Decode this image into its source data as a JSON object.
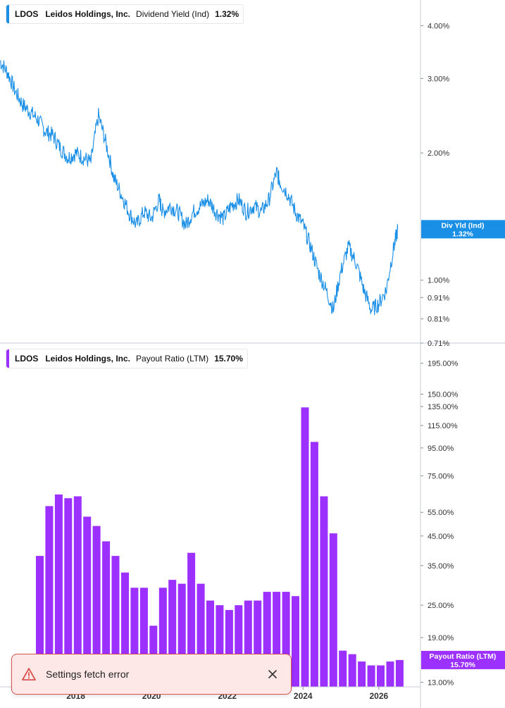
{
  "toast": {
    "message": "Settings fetch error",
    "icon": "warning-icon",
    "close_icon": "close-icon",
    "color": "#d9534f"
  },
  "chart_data": [
    {
      "type": "line",
      "legend": {
        "ticker": "LDOS",
        "company": "Leidos Holdings, Inc.",
        "metric": "Dividend Yield (Ind)",
        "value": "1.32%"
      },
      "scale": "log",
      "color": "#1a8fe6",
      "y_ticks": [
        "4.00%",
        "3.00%",
        "2.00%",
        "1.00%",
        "0.91%",
        "0.81%",
        "0.71%"
      ],
      "y_tick_values": [
        4.0,
        3.0,
        2.0,
        1.0,
        0.91,
        0.81,
        0.71
      ],
      "ylim": [
        0.71,
        4.6
      ],
      "last_value_label": {
        "name": "Div Yld (Ind)",
        "value": "1.32%"
      },
      "x": [
        2016.0,
        2016.2,
        2016.4,
        2016.6,
        2016.8,
        2017.0,
        2017.2,
        2017.4,
        2017.6,
        2017.8,
        2018.0,
        2018.2,
        2018.4,
        2018.6,
        2018.8,
        2019.0,
        2019.2,
        2019.4,
        2019.6,
        2019.8,
        2020.0,
        2020.2,
        2020.3,
        2020.5,
        2020.7,
        2020.9,
        2021.1,
        2021.3,
        2021.5,
        2021.7,
        2021.9,
        2022.1,
        2022.3,
        2022.5,
        2022.7,
        2022.9,
        2023.1,
        2023.3,
        2023.4,
        2023.6,
        2023.8,
        2024.0,
        2024.2,
        2024.4,
        2024.6,
        2024.8,
        2025.0,
        2025.2,
        2025.4,
        2025.6,
        2025.8,
        2026.0,
        2026.2,
        2026.4,
        2026.5
      ],
      "values": [
        3.3,
        3.1,
        2.8,
        2.6,
        2.5,
        2.4,
        2.25,
        2.2,
        2.05,
        1.95,
        2.0,
        1.95,
        1.9,
        2.45,
        2.1,
        1.75,
        1.6,
        1.45,
        1.35,
        1.45,
        1.4,
        1.55,
        1.45,
        1.5,
        1.45,
        1.35,
        1.45,
        1.5,
        1.55,
        1.45,
        1.4,
        1.5,
        1.55,
        1.45,
        1.5,
        1.45,
        1.55,
        1.8,
        1.7,
        1.6,
        1.45,
        1.35,
        1.2,
        1.05,
        0.95,
        0.85,
        1.05,
        1.2,
        1.1,
        0.95,
        0.85,
        0.88,
        0.95,
        1.2,
        1.32
      ],
      "detail": {
        "weekly_noise": true
      }
    },
    {
      "type": "bar",
      "legend": {
        "ticker": "LDOS",
        "company": "Leidos Holdings, Inc.",
        "metric": "Payout Ratio (LTM)",
        "value": "15.70%"
      },
      "scale": "log",
      "color": "#9b30ff",
      "y_ticks": [
        "195.00%",
        "150.00%",
        "135.00%",
        "115.00%",
        "95.00%",
        "75.00%",
        "55.00%",
        "45.00%",
        "35.00%",
        "25.00%",
        "19.00%",
        "13.00%"
      ],
      "y_tick_values": [
        195,
        150,
        135,
        115,
        95,
        75,
        55,
        45,
        35,
        25,
        19,
        13
      ],
      "ylim": [
        12.5,
        230
      ],
      "last_value_label": {
        "name": "Payout Ratio (LTM)",
        "value": "15.70%"
      },
      "x_ticks": [
        "2018",
        "2020",
        "2022",
        "2024",
        "2026"
      ],
      "x_tick_values": [
        2018.0,
        2020.0,
        2022.0,
        2024.0,
        2026.0
      ],
      "x": [
        2017.05,
        2017.3,
        2017.55,
        2017.8,
        2018.05,
        2018.3,
        2018.55,
        2018.8,
        2019.05,
        2019.3,
        2019.55,
        2019.8,
        2020.05,
        2020.3,
        2020.55,
        2020.8,
        2021.05,
        2021.3,
        2021.55,
        2021.8,
        2022.05,
        2022.3,
        2022.55,
        2022.8,
        2023.05,
        2023.3,
        2023.55,
        2023.8,
        2024.05,
        2024.3,
        2024.55,
        2024.8,
        2025.05,
        2025.3,
        2025.55,
        2025.8,
        2026.05,
        2026.3,
        2026.55
      ],
      "values": [
        38,
        58,
        64,
        62,
        63,
        53,
        49,
        43,
        38,
        33,
        29,
        29,
        21,
        29,
        31,
        30,
        39,
        30,
        26,
        25,
        24,
        25,
        26,
        26,
        28,
        28,
        28,
        27,
        134,
        100,
        63,
        46,
        17,
        16.5,
        15.5,
        15,
        15,
        15.5,
        15.7
      ]
    }
  ]
}
